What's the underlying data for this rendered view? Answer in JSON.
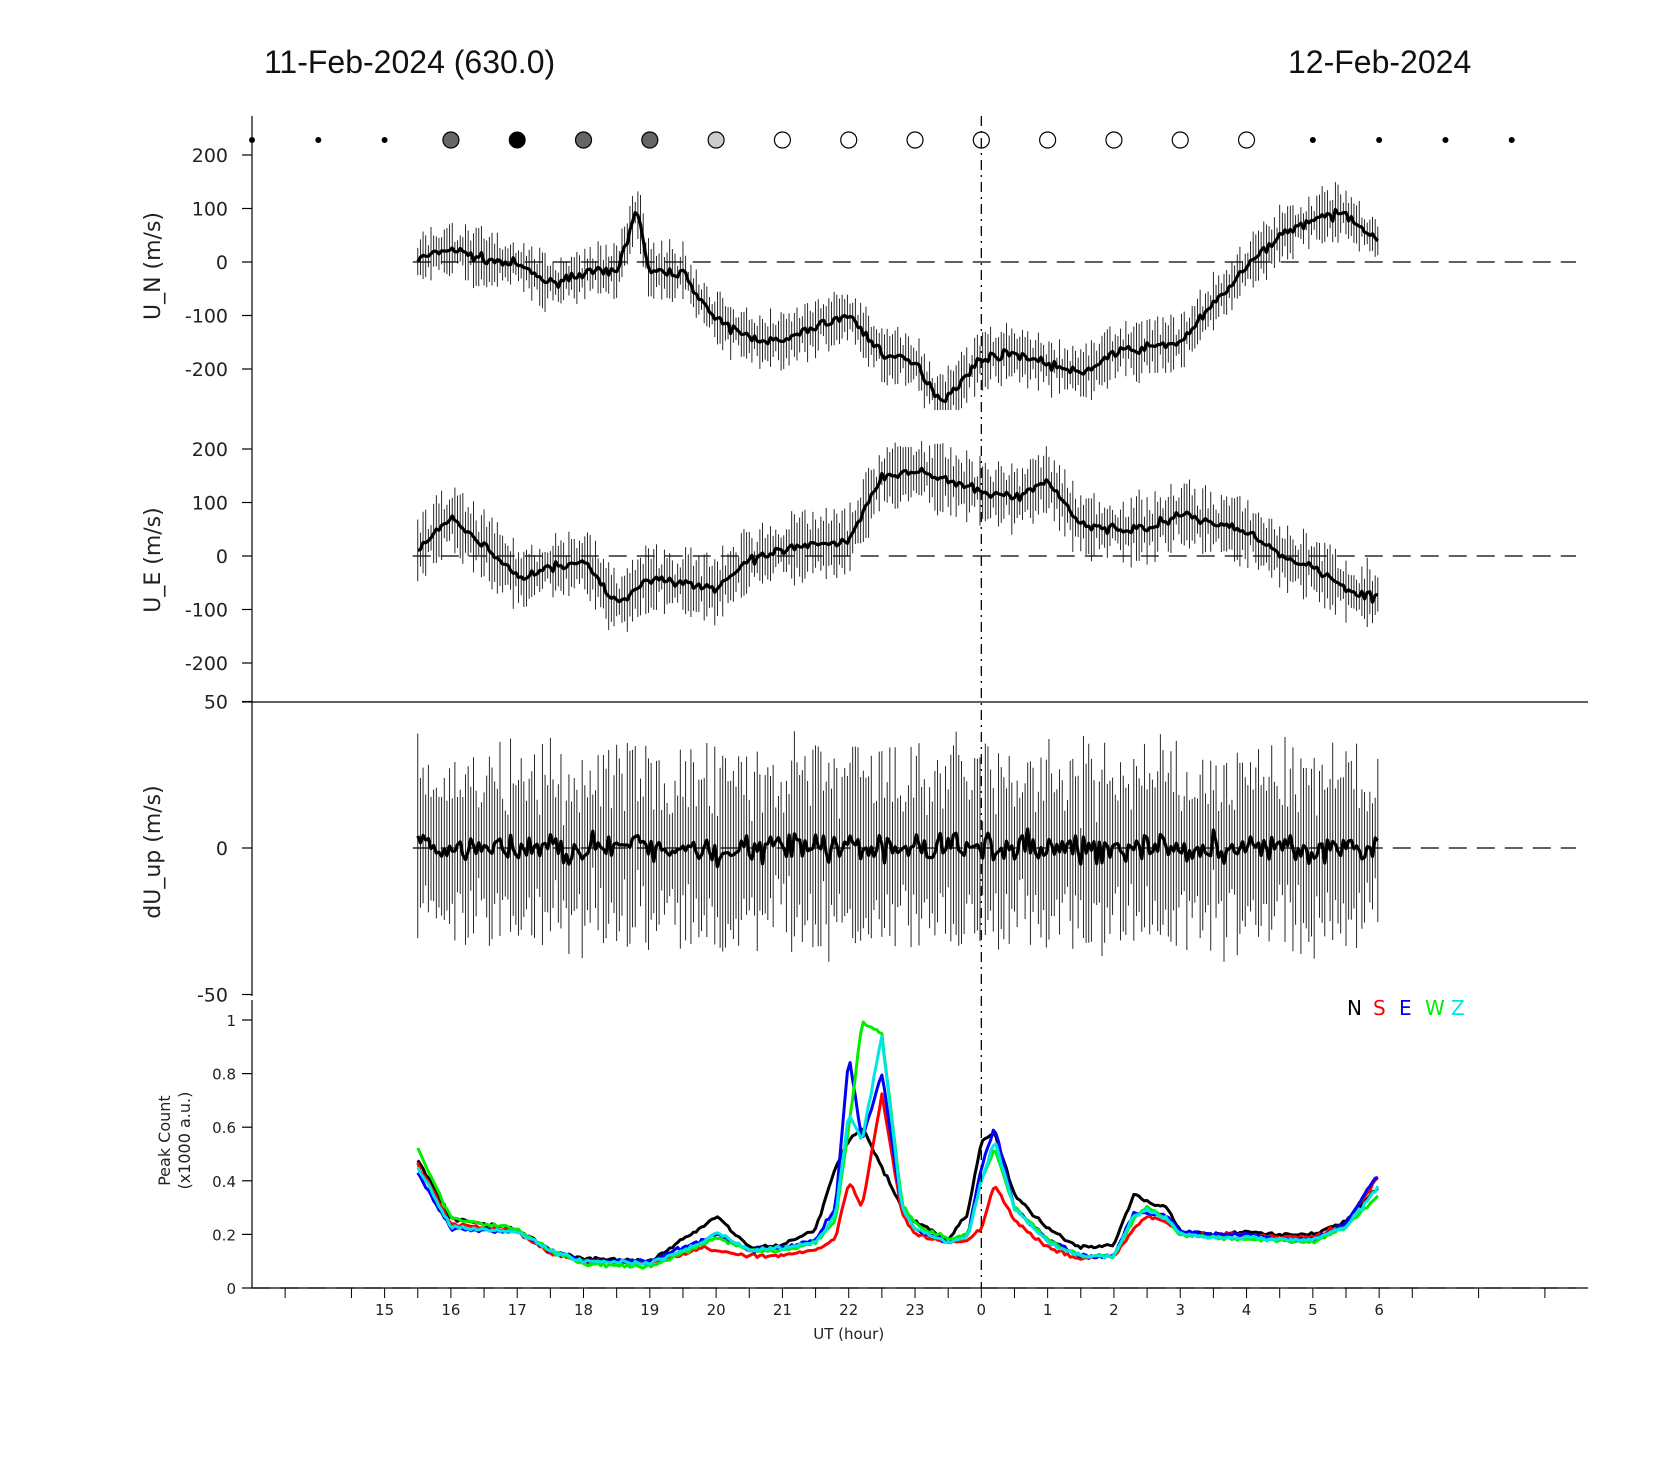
{
  "titles": {
    "left": "11-Feb-2024 (630.0)",
    "right": "12-Feb-2024"
  },
  "chart_data": [
    {
      "type": "line",
      "panel": "U_N",
      "ylabel": "U_N (m/s)",
      "ylim": [
        -280,
        280
      ],
      "yticks": [
        -200,
        -100,
        0,
        100,
        200
      ],
      "x_hours_series": "first point at 15.5 UT (11-Feb), last at 6.0 UT (12-Feb)",
      "series": [
        {
          "name": "",
          "x": [
            15.5,
            16.0,
            16.5,
            17.0,
            17.5,
            18.0,
            18.5,
            18.8,
            19.0,
            19.5,
            20.0,
            20.5,
            21.0,
            21.5,
            22.0,
            22.5,
            23.0,
            23.4,
            23.8,
            0.0,
            0.5,
            1.0,
            1.5,
            2.0,
            2.5,
            3.0,
            3.5,
            4.0,
            4.5,
            5.0,
            5.5,
            6.0
          ],
          "values": [
            5,
            25,
            5,
            -5,
            -40,
            -20,
            -20,
            100,
            -20,
            -20,
            -110,
            -140,
            -150,
            -120,
            -100,
            -170,
            -190,
            -260,
            -210,
            -180,
            -170,
            -190,
            -210,
            -170,
            -160,
            -150,
            -80,
            -10,
            50,
            80,
            90,
            40
          ]
        }
      ],
      "error_bar_typical": 40
    },
    {
      "type": "line",
      "panel": "U_E",
      "ylabel": "U_E (m/s)",
      "ylim": [
        -275,
        275
      ],
      "yticks": [
        -200,
        -100,
        0,
        100,
        200
      ],
      "series": [
        {
          "name": "",
          "x": [
            15.5,
            16.0,
            16.5,
            17.0,
            17.5,
            18.0,
            18.5,
            19.0,
            19.5,
            20.0,
            20.5,
            21.0,
            21.5,
            22.0,
            22.5,
            23.0,
            23.5,
            0.0,
            0.5,
            1.0,
            1.5,
            2.0,
            2.5,
            3.0,
            3.5,
            4.0,
            4.5,
            5.0,
            5.5,
            6.0
          ],
          "values": [
            10,
            70,
            20,
            -40,
            -20,
            -10,
            -90,
            -40,
            -50,
            -60,
            -10,
            10,
            20,
            30,
            150,
            160,
            140,
            120,
            110,
            140,
            60,
            50,
            50,
            80,
            60,
            50,
            0,
            -20,
            -60,
            -80
          ]
        }
      ],
      "error_bar_typical": 50
    },
    {
      "type": "line",
      "panel": "dU_up",
      "ylabel": "dU_up (m/s)",
      "ylim": [
        -50,
        50
      ],
      "yticks": [
        -50,
        0,
        50
      ],
      "series": [
        {
          "name": "",
          "values_note": "noisy around 0, amplitude ~10-20 m/s",
          "mean": 0
        }
      ],
      "error_bar_typical": 25
    },
    {
      "type": "line",
      "panel": "Peak Count",
      "ylabel": "Peak Count (x1000 a.u.)",
      "ylim": [
        0,
        1
      ],
      "yticks": [
        0,
        0.2,
        0.4,
        0.6,
        0.8,
        1
      ],
      "legend_placement": "top-right",
      "series": [
        {
          "name": "N",
          "color": "#000000",
          "x": [
            15.5,
            16.0,
            17.0,
            17.5,
            18.0,
            19.0,
            19.8,
            20.0,
            20.5,
            21.0,
            21.5,
            21.8,
            22.0,
            22.2,
            22.5,
            22.8,
            23.0,
            23.5,
            23.8,
            0.0,
            0.2,
            0.5,
            1.0,
            1.5,
            2.0,
            2.3,
            2.5,
            2.8,
            3.0,
            3.5,
            4.0,
            4.5,
            5.0,
            5.5,
            6.0
          ],
          "values": [
            0.48,
            0.26,
            0.22,
            0.14,
            0.11,
            0.1,
            0.23,
            0.27,
            0.15,
            0.16,
            0.22,
            0.45,
            0.55,
            0.6,
            0.45,
            0.3,
            0.25,
            0.18,
            0.28,
            0.55,
            0.58,
            0.35,
            0.22,
            0.15,
            0.16,
            0.35,
            0.32,
            0.3,
            0.21,
            0.2,
            0.21,
            0.2,
            0.2,
            0.25,
            0.38
          ]
        },
        {
          "name": "S",
          "color": "#ff0000",
          "x": [
            15.5,
            16.0,
            17.0,
            17.5,
            18.0,
            19.0,
            19.8,
            20.0,
            20.5,
            21.0,
            21.5,
            21.8,
            22.0,
            22.2,
            22.5,
            22.8,
            23.0,
            23.5,
            23.8,
            0.0,
            0.2,
            0.5,
            1.0,
            1.5,
            2.0,
            2.3,
            2.5,
            2.8,
            3.0,
            3.5,
            4.0,
            4.5,
            5.0,
            5.5,
            6.0
          ],
          "values": [
            0.46,
            0.24,
            0.21,
            0.13,
            0.1,
            0.09,
            0.15,
            0.14,
            0.12,
            0.12,
            0.14,
            0.18,
            0.4,
            0.3,
            0.72,
            0.28,
            0.2,
            0.17,
            0.18,
            0.22,
            0.39,
            0.25,
            0.15,
            0.11,
            0.12,
            0.22,
            0.27,
            0.25,
            0.2,
            0.2,
            0.2,
            0.19,
            0.19,
            0.24,
            0.42
          ]
        },
        {
          "name": "E",
          "color": "#0000ff",
          "x": [
            15.5,
            16.0,
            17.0,
            17.5,
            18.0,
            19.0,
            19.8,
            20.0,
            20.5,
            21.0,
            21.5,
            21.8,
            22.0,
            22.2,
            22.5,
            22.8,
            23.0,
            23.5,
            23.8,
            0.0,
            0.2,
            0.5,
            1.0,
            1.5,
            2.0,
            2.3,
            2.5,
            2.8,
            3.0,
            3.5,
            4.0,
            4.5,
            5.0,
            5.5,
            6.0
          ],
          "values": [
            0.43,
            0.22,
            0.21,
            0.14,
            0.1,
            0.1,
            0.18,
            0.2,
            0.14,
            0.15,
            0.18,
            0.3,
            0.87,
            0.55,
            0.8,
            0.3,
            0.22,
            0.17,
            0.2,
            0.45,
            0.6,
            0.3,
            0.18,
            0.12,
            0.12,
            0.28,
            0.28,
            0.27,
            0.21,
            0.2,
            0.2,
            0.18,
            0.18,
            0.24,
            0.43
          ]
        },
        {
          "name": "W",
          "color": "#00ee00",
          "x": [
            15.5,
            16.0,
            17.0,
            17.5,
            18.0,
            19.0,
            19.8,
            20.0,
            20.5,
            21.0,
            21.5,
            21.8,
            22.0,
            22.2,
            22.5,
            22.8,
            23.0,
            23.5,
            23.8,
            0.0,
            0.2,
            0.5,
            1.0,
            1.5,
            2.0,
            2.3,
            2.5,
            2.8,
            3.0,
            3.5,
            4.0,
            4.5,
            5.0,
            5.5,
            6.0
          ],
          "values": [
            0.52,
            0.26,
            0.22,
            0.14,
            0.09,
            0.08,
            0.16,
            0.19,
            0.14,
            0.14,
            0.17,
            0.25,
            0.6,
            0.99,
            0.95,
            0.32,
            0.24,
            0.18,
            0.2,
            0.4,
            0.52,
            0.3,
            0.18,
            0.12,
            0.12,
            0.26,
            0.3,
            0.26,
            0.2,
            0.19,
            0.18,
            0.18,
            0.17,
            0.23,
            0.35
          ]
        },
        {
          "name": "Z",
          "color": "#00e5e5",
          "x": [
            15.5,
            16.0,
            17.0,
            17.5,
            18.0,
            19.0,
            19.8,
            20.0,
            20.5,
            21.0,
            21.5,
            21.8,
            22.0,
            22.2,
            22.5,
            22.8,
            23.0,
            23.5,
            23.8,
            0.0,
            0.2,
            0.5,
            1.0,
            1.5,
            2.0,
            2.3,
            2.5,
            2.8,
            3.0,
            3.5,
            4.0,
            4.5,
            5.0,
            5.5,
            6.0
          ],
          "values": [
            0.45,
            0.23,
            0.21,
            0.14,
            0.1,
            0.09,
            0.17,
            0.21,
            0.14,
            0.15,
            0.17,
            0.27,
            0.65,
            0.55,
            0.94,
            0.3,
            0.22,
            0.17,
            0.19,
            0.4,
            0.55,
            0.3,
            0.17,
            0.12,
            0.12,
            0.27,
            0.29,
            0.26,
            0.2,
            0.19,
            0.19,
            0.18,
            0.18,
            0.23,
            0.38
          ]
        }
      ]
    }
  ],
  "xaxis": {
    "label": "UT (hour)",
    "tick_labels": [
      "15",
      "16",
      "17",
      "18",
      "19",
      "20",
      "21",
      "22",
      "23",
      "0",
      "1",
      "2",
      "3",
      "4",
      "5",
      "6"
    ],
    "midnight_label": "0"
  },
  "moon_markers": {
    "note": "cloud/sky-condition symbols along the top, one per hour",
    "symbols": [
      "dot",
      "dot",
      "dot",
      "gray",
      "black",
      "gray",
      "gray",
      "lightgray",
      "open",
      "open",
      "open",
      "open",
      "open",
      "open",
      "open",
      "open",
      "dot",
      "dot",
      "dot",
      "dot"
    ]
  },
  "legend": {
    "letters": [
      "N",
      "S",
      "E",
      "W",
      "Z"
    ],
    "colors": [
      "#000000",
      "#ff0000",
      "#0000ff",
      "#00ee00",
      "#00e5e5"
    ]
  }
}
